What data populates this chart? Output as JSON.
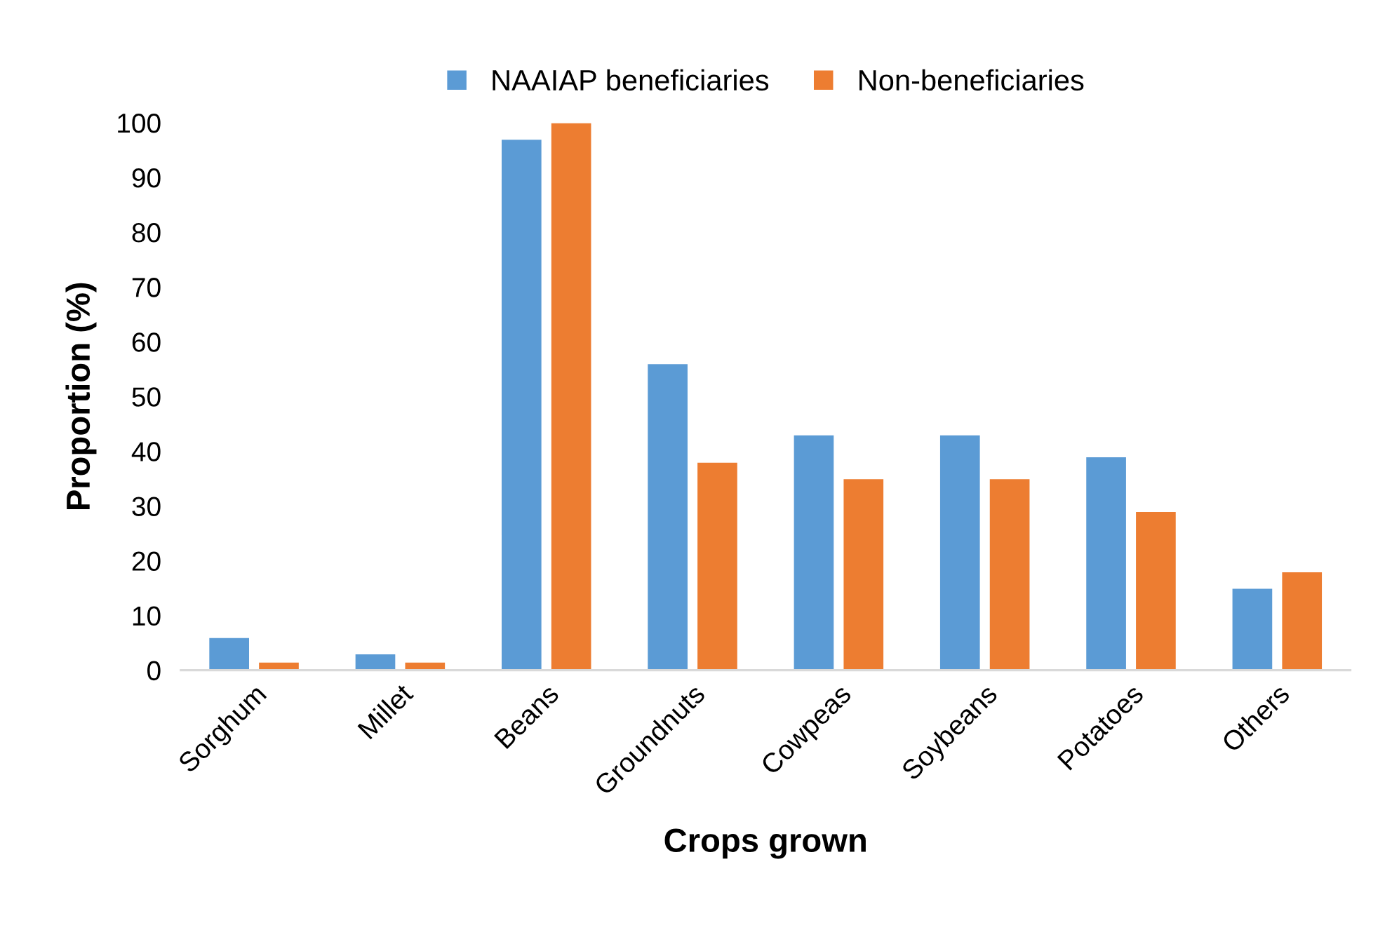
{
  "chart_data": {
    "type": "bar",
    "xlabel": "Crops grown",
    "ylabel": "Proportion (%)",
    "categories": [
      "Sorghum",
      "Millet",
      "Beans",
      "Groundnuts",
      "Cowpeas",
      "Soybeans",
      "Potatoes",
      "Others"
    ],
    "series": [
      {
        "name": "NAAIAP beneficiaries",
        "color": "#5b9bd5",
        "values": [
          6,
          3,
          97,
          56,
          43,
          43,
          39,
          15
        ]
      },
      {
        "name": "Non-beneficiaries",
        "color": "#ed7d31",
        "values": [
          1.5,
          1.5,
          100,
          38,
          35,
          35,
          29,
          18
        ]
      }
    ],
    "ylim": [
      0,
      100
    ],
    "yticks": [
      0,
      10,
      20,
      30,
      40,
      50,
      60,
      70,
      80,
      90,
      100
    ],
    "grid": false,
    "legend": "top"
  }
}
